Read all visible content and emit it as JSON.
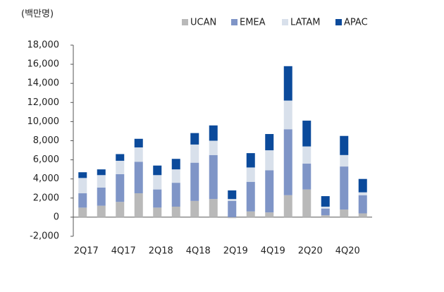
{
  "chart_data": {
    "type": "stacked_bar",
    "unit_label": "(백만명)",
    "categories": [
      "2Q17",
      null,
      "4Q17",
      null,
      "2Q18",
      null,
      "4Q18",
      null,
      "2Q19",
      null,
      "4Q19",
      null,
      "2Q20",
      null,
      "4Q20",
      null
    ],
    "series": [
      {
        "name": "UCAN",
        "color": "#b9b9b9",
        "values": [
          1000,
          1200,
          1600,
          2500,
          1000,
          1100,
          1700,
          1900,
          -100,
          600,
          500,
          2300,
          2900,
          200,
          800,
          400
        ]
      },
      {
        "name": "EMEA",
        "color": "#7f95c7",
        "values": [
          1500,
          1900,
          2900,
          3300,
          1900,
          2500,
          4000,
          4600,
          1700,
          3100,
          4400,
          6900,
          2700,
          700,
          4500,
          1900
        ]
      },
      {
        "name": "LATAM",
        "color": "#d8e0eb",
        "values": [
          1600,
          1300,
          1400,
          1500,
          1500,
          1400,
          1900,
          1500,
          200,
          1500,
          2100,
          3000,
          1800,
          200,
          1200,
          300
        ]
      },
      {
        "name": "APAC",
        "color": "#0b4a9b",
        "values": [
          600,
          600,
          700,
          900,
          1000,
          1100,
          1200,
          1600,
          900,
          1500,
          1700,
          3600,
          2700,
          1100,
          2000,
          1400
        ]
      }
    ],
    "ylim": [
      -2000,
      18000
    ],
    "yticks": [
      {
        "value": -2000,
        "label": "-2,000"
      },
      0,
      {
        "value": 2000,
        "label": "2,000"
      },
      {
        "value": 4000,
        "label": "4,000"
      },
      {
        "value": 6000,
        "label": "6,000"
      },
      {
        "value": 8000,
        "label": "8,000"
      },
      {
        "value": 10000,
        "label": "10,000"
      },
      {
        "value": 12000,
        "label": "12,000"
      },
      {
        "value": 14000,
        "label": "14,000"
      },
      {
        "value": 16000,
        "label": "16,000"
      },
      {
        "value": 18000,
        "label": "18,000"
      }
    ],
    "grid": false,
    "legend": "top-right"
  }
}
